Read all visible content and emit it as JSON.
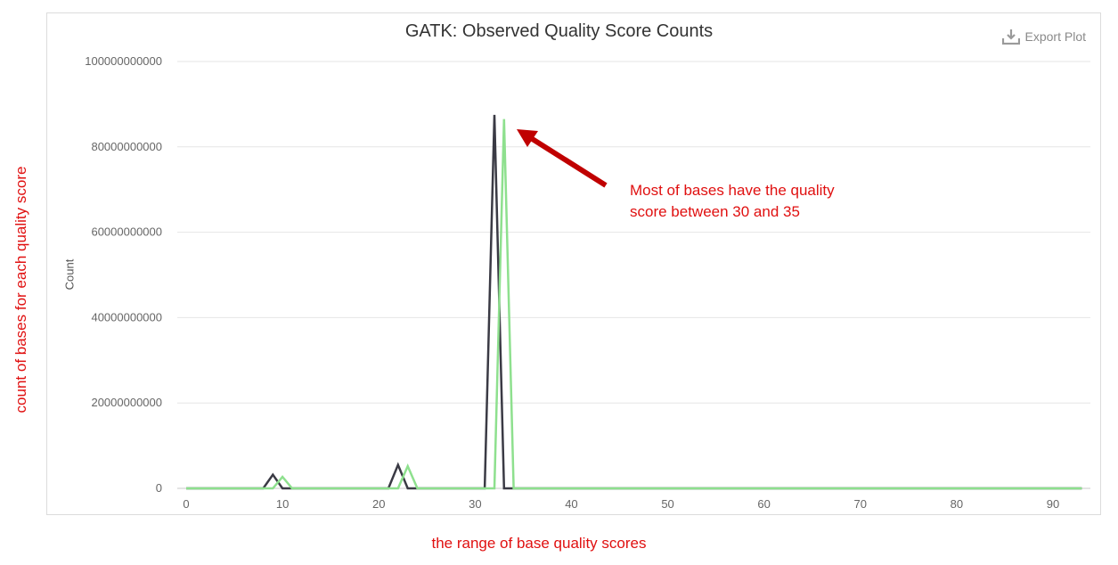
{
  "chart_data": {
    "type": "line",
    "title": "GATK: Observed Quality Score Counts",
    "xlabel": "",
    "ylabel": "Count",
    "xlim": [
      0,
      93
    ],
    "ylim": [
      0,
      100000000000
    ],
    "x_ticks": [
      0,
      10,
      20,
      30,
      40,
      50,
      60,
      70,
      80,
      90
    ],
    "y_ticks": [
      0,
      20000000000,
      40000000000,
      60000000000,
      80000000000,
      100000000000
    ],
    "y_tick_labels": [
      "0",
      "20000000000",
      "40000000000",
      "60000000000",
      "80000000000",
      "100000000000"
    ],
    "grid": true,
    "series": [
      {
        "color": "#3a3a44",
        "points": [
          [
            0,
            0
          ],
          [
            8,
            0
          ],
          [
            9,
            3200000000
          ],
          [
            10,
            0
          ],
          [
            21,
            0
          ],
          [
            22,
            5500000000
          ],
          [
            23,
            0
          ],
          [
            31,
            0
          ],
          [
            32,
            87500000000
          ],
          [
            33,
            0
          ],
          [
            93,
            0
          ]
        ]
      },
      {
        "color": "#8ee08e",
        "points": [
          [
            0,
            0
          ],
          [
            9,
            0
          ],
          [
            10,
            2700000000
          ],
          [
            11,
            0
          ],
          [
            22,
            0
          ],
          [
            23,
            5200000000
          ],
          [
            24,
            0
          ],
          [
            32,
            0
          ],
          [
            33,
            86500000000
          ],
          [
            34,
            0
          ],
          [
            93,
            0
          ]
        ]
      }
    ]
  },
  "export_label": "Export Plot",
  "annotation": {
    "line1": "Most of bases have the quality",
    "line2": "score between 30 and 35",
    "color": "#e01010",
    "arrow_color": "#c00000"
  },
  "outer_labels": {
    "y": "count of bases for each quality score",
    "x": "the range of base quality scores"
  }
}
